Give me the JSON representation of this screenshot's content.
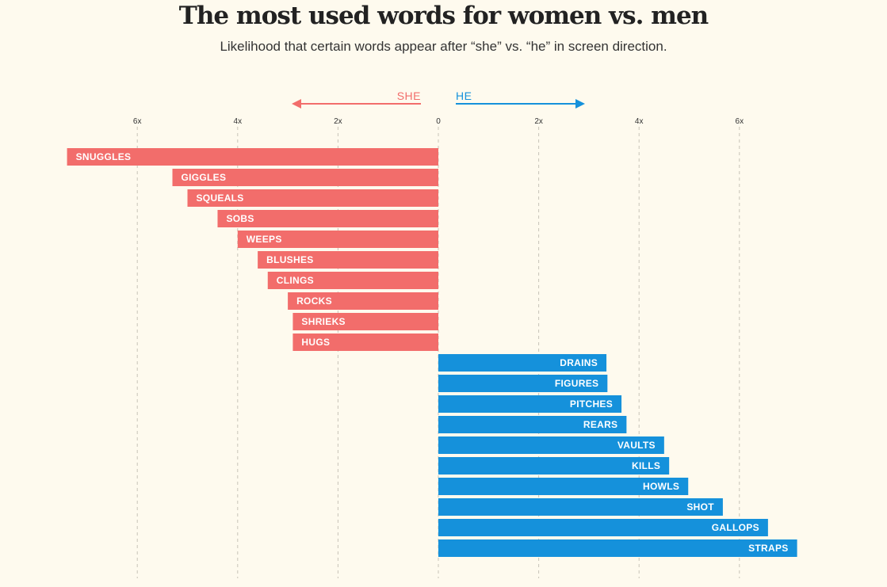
{
  "title": "The most used words for women vs. men",
  "subtitle": "Likelihood that certain words appear after “she” vs. “he” in screen direction.",
  "colors": {
    "she": "#f26d6b",
    "he": "#1591db",
    "background": "#fefaee",
    "grid": "#c8c4b8"
  },
  "chart_data": {
    "type": "bar",
    "orientation": "horizontal-diverging",
    "xlim": [
      -7.4,
      7.4
    ],
    "ticks": [
      {
        "value": -6,
        "label": "6x"
      },
      {
        "value": -4,
        "label": "4x"
      },
      {
        "value": -2,
        "label": "2x"
      },
      {
        "value": 0,
        "label": "0"
      },
      {
        "value": 2,
        "label": "2x"
      },
      {
        "value": 4,
        "label": "4x"
      },
      {
        "value": 6,
        "label": "6x"
      }
    ],
    "grid": "vertical-dashed",
    "direction_labels": {
      "she": "SHE",
      "he": "HE"
    },
    "series": [
      {
        "name": "SHE",
        "categories": [
          "SNUGGLES",
          "GIGGLES",
          "SQUEALS",
          "SOBS",
          "WEEPS",
          "BLUSHES",
          "CLINGS",
          "ROCKS",
          "SHRIEKS",
          "HUGS"
        ],
        "values": [
          7.4,
          5.3,
          5.0,
          4.4,
          4.0,
          3.6,
          3.4,
          3.0,
          2.9,
          2.9
        ]
      },
      {
        "name": "HE",
        "categories": [
          "DRAINS",
          "FIGURES",
          "PITCHES",
          "REARS",
          "VAULTS",
          "KILLS",
          "HOWLS",
          "SHOT",
          "GALLOPS",
          "STRAPS"
        ],
        "values": [
          3.35,
          3.37,
          3.65,
          3.75,
          4.5,
          4.6,
          4.98,
          5.67,
          6.57,
          7.15
        ]
      }
    ]
  }
}
